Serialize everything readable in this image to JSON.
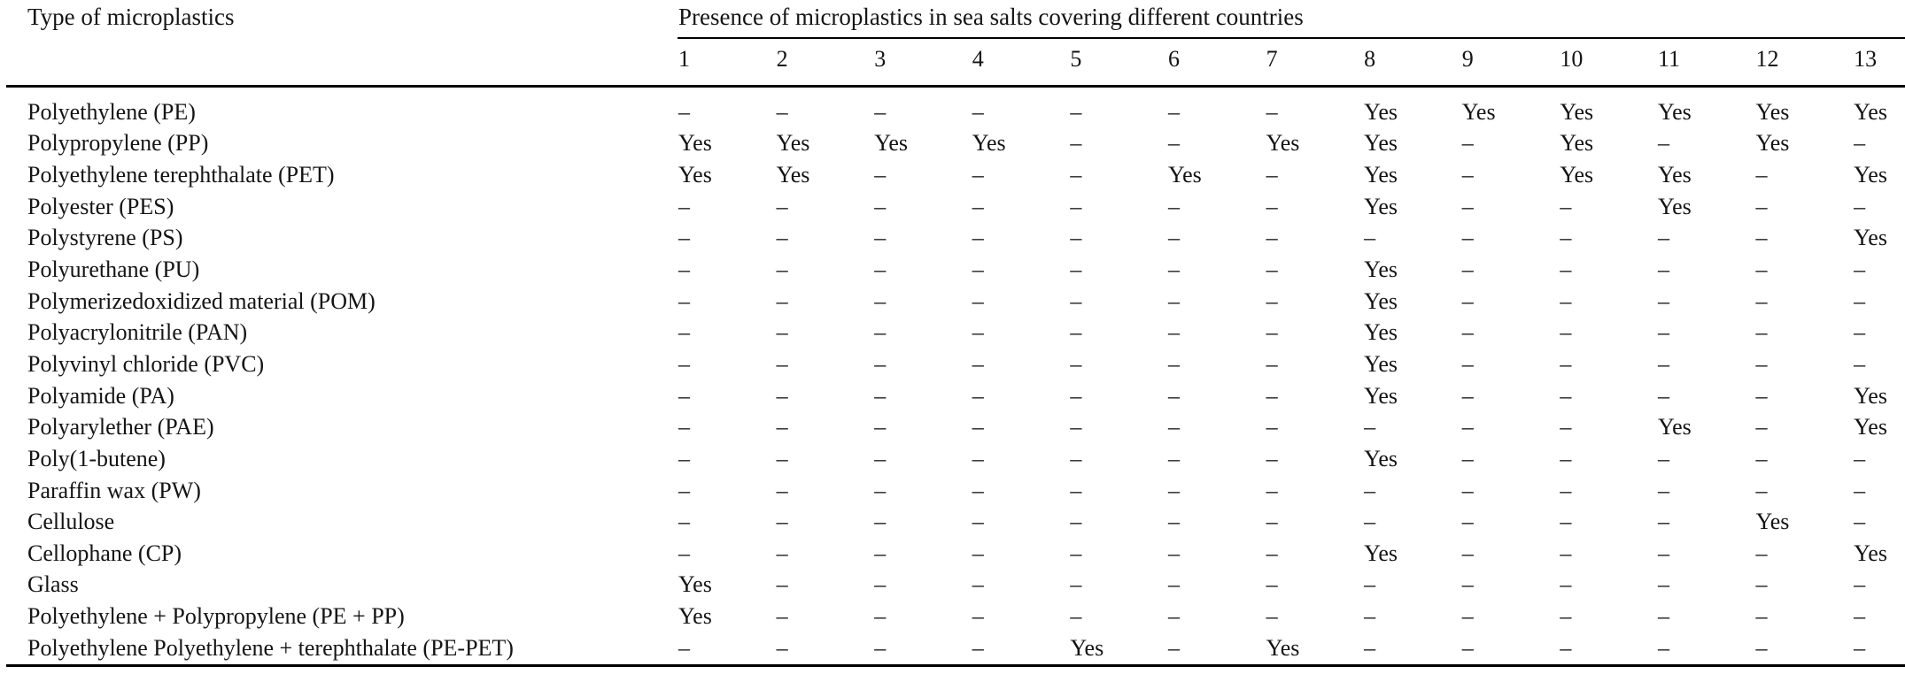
{
  "table": {
    "row_header": "Type of microplastics",
    "group_header": "Presence of microplastics in sea salts covering different countries",
    "column_headers": [
      "1",
      "2",
      "3",
      "4",
      "5",
      "6",
      "7",
      "8",
      "9",
      "10",
      "11",
      "12",
      "13"
    ],
    "dash_symbol": "–",
    "yes_symbol": "Yes",
    "rows": [
      {
        "label": "Polyethylene (PE)",
        "values": [
          "–",
          "–",
          "–",
          "–",
          "–",
          "–",
          "–",
          "Yes",
          "Yes",
          "Yes",
          "Yes",
          "Yes",
          "Yes"
        ]
      },
      {
        "label": "Polypropylene (PP)",
        "values": [
          "Yes",
          "Yes",
          "Yes",
          "Yes",
          "–",
          "–",
          "Yes",
          "Yes",
          "–",
          "Yes",
          "–",
          "Yes",
          "–"
        ]
      },
      {
        "label": "Polyethylene terephthalate (PET)",
        "values": [
          "Yes",
          "Yes",
          "–",
          "–",
          "–",
          "Yes",
          "–",
          "Yes",
          "–",
          "Yes",
          "Yes",
          "–",
          "Yes"
        ]
      },
      {
        "label": "Polyester (PES)",
        "values": [
          "–",
          "–",
          "–",
          "–",
          "–",
          "–",
          "–",
          "Yes",
          "–",
          "–",
          "Yes",
          "–",
          "–"
        ]
      },
      {
        "label": "Polystyrene (PS)",
        "values": [
          "–",
          "–",
          "–",
          "–",
          "–",
          "–",
          "–",
          "–",
          "–",
          "–",
          "–",
          "–",
          "Yes"
        ]
      },
      {
        "label": "Polyurethane (PU)",
        "values": [
          "–",
          "–",
          "–",
          "–",
          "–",
          "–",
          "–",
          "Yes",
          "–",
          "–",
          "–",
          "–",
          "–"
        ]
      },
      {
        "label": "Polymerizedoxidized material (POM)",
        "values": [
          "–",
          "–",
          "–",
          "–",
          "–",
          "–",
          "–",
          "Yes",
          "–",
          "–",
          "–",
          "–",
          "–"
        ]
      },
      {
        "label": "Polyacrylonitrile (PAN)",
        "values": [
          "–",
          "–",
          "–",
          "–",
          "–",
          "–",
          "–",
          "Yes",
          "–",
          "–",
          "–",
          "–",
          "–"
        ]
      },
      {
        "label": "Polyvinyl chloride (PVC)",
        "values": [
          "–",
          "–",
          "–",
          "–",
          "–",
          "–",
          "–",
          "Yes",
          "–",
          "–",
          "–",
          "–",
          "–"
        ]
      },
      {
        "label": "Polyamide (PA)",
        "values": [
          "–",
          "–",
          "–",
          "–",
          "–",
          "–",
          "–",
          "Yes",
          "–",
          "–",
          "–",
          "–",
          "Yes"
        ]
      },
      {
        "label": "Polyarylether (PAE)",
        "values": [
          "–",
          "–",
          "–",
          "–",
          "–",
          "–",
          "–",
          "–",
          "–",
          "–",
          "Yes",
          "–",
          "Yes"
        ]
      },
      {
        "label": "Poly(1-butene)",
        "values": [
          "–",
          "–",
          "–",
          "–",
          "–",
          "–",
          "–",
          "Yes",
          "–",
          "–",
          "–",
          "–",
          "–"
        ]
      },
      {
        "label": "Paraffin wax (PW)",
        "values": [
          "–",
          "–",
          "–",
          "–",
          "–",
          "–",
          "–",
          "–",
          "–",
          "–",
          "–",
          "–",
          "–"
        ]
      },
      {
        "label": "Cellulose",
        "values": [
          "–",
          "–",
          "–",
          "–",
          "–",
          "–",
          "–",
          "–",
          "–",
          "–",
          "–",
          "Yes",
          "–"
        ]
      },
      {
        "label": "Cellophane (CP)",
        "values": [
          "–",
          "–",
          "–",
          "–",
          "–",
          "–",
          "–",
          "Yes",
          "–",
          "–",
          "–",
          "–",
          "Yes"
        ]
      },
      {
        "label": "Glass",
        "values": [
          "Yes",
          "–",
          "–",
          "–",
          "–",
          "–",
          "–",
          "–",
          "–",
          "–",
          "–",
          "–",
          "–"
        ]
      },
      {
        "label": "Polyethylene + Polypropylene (PE + PP)",
        "values": [
          "Yes",
          "–",
          "–",
          "–",
          "–",
          "–",
          "–",
          "–",
          "–",
          "–",
          "–",
          "–",
          "–"
        ]
      },
      {
        "label": "Polyethylene Polyethylene + terephthalate (PE-PET)",
        "values": [
          "–",
          "–",
          "–",
          "–",
          "Yes",
          "–",
          "Yes",
          "–",
          "–",
          "–",
          "–",
          "–",
          "–"
        ]
      }
    ]
  }
}
